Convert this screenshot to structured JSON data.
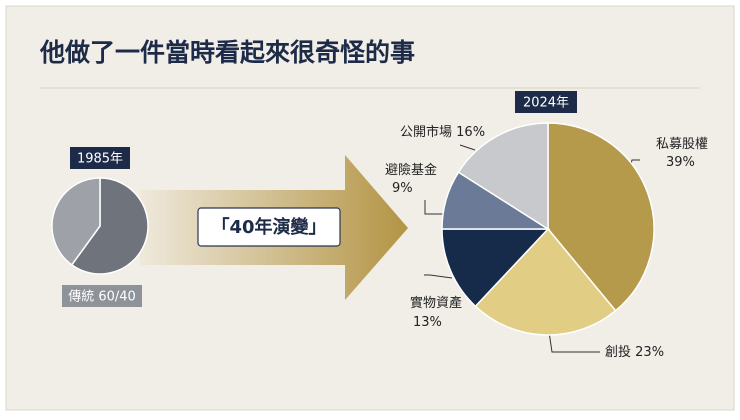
{
  "title": "他做了一件當時看起來很奇怪的事",
  "arrow_label": "「40年演變」",
  "chart_data": [
    {
      "type": "pie",
      "title": "1985年",
      "label": "傳統 60/40",
      "values": [
        60,
        40
      ],
      "colors": [
        "#6f737b",
        "#9ea1a7"
      ]
    },
    {
      "type": "pie",
      "title": "2024年",
      "categories": [
        "私募股權",
        "創投",
        "實物資產",
        "避險基金",
        "公開市場"
      ],
      "values": [
        39,
        23,
        13,
        9,
        16
      ],
      "value_labels": [
        "39%",
        "23%",
        "13%",
        "9%",
        "16%"
      ],
      "colors": [
        "#b59a4c",
        "#e2cd84",
        "#162a4a",
        "#6b7a96",
        "#c8c9cc"
      ]
    }
  ]
}
